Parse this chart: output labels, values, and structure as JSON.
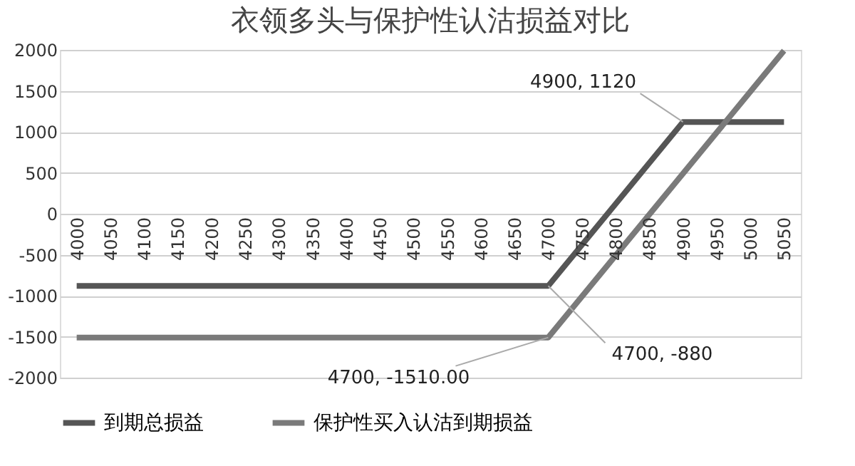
{
  "chart_data": {
    "type": "line",
    "title": "衣领多头与保护性认沽损益对比",
    "categories": [
      "4000",
      "4050",
      "4100",
      "4150",
      "4200",
      "4250",
      "4300",
      "4350",
      "4400",
      "4450",
      "4500",
      "4550",
      "4600",
      "4650",
      "4700",
      "4750",
      "4800",
      "4850",
      "4900",
      "4950",
      "5000",
      "5050"
    ],
    "series": [
      {
        "name": "到期总损益",
        "color": "#555555",
        "values": [
          -880,
          -880,
          -880,
          -880,
          -880,
          -880,
          -880,
          -880,
          -880,
          -880,
          -880,
          -880,
          -880,
          -880,
          -880,
          -380,
          120,
          620,
          1120,
          1120,
          1120,
          1120
        ]
      },
      {
        "name": "保护性买入认沽到期损益",
        "color": "#7a7a7a",
        "values": [
          -1510,
          -1510,
          -1510,
          -1510,
          -1510,
          -1510,
          -1510,
          -1510,
          -1510,
          -1510,
          -1510,
          -1510,
          -1510,
          -1510,
          -1510,
          -1010,
          -510,
          -10,
          490,
          990,
          1490,
          1990
        ]
      }
    ],
    "ylim": [
      -2000,
      2000
    ],
    "yticks": [
      -2000,
      -1500,
      -1000,
      -500,
      0,
      500,
      1000,
      1500,
      2000
    ],
    "grid": "y",
    "legend": "bottom",
    "marker": "none",
    "line_style": "solid",
    "annotations": [
      {
        "text": "4900, 1120",
        "x": "4900",
        "y": 1120
      },
      {
        "text": "4700, -880",
        "x": "4700",
        "y": -880
      },
      {
        "text": "4700, -1510.00",
        "x": "4700",
        "y": -1510
      }
    ]
  }
}
